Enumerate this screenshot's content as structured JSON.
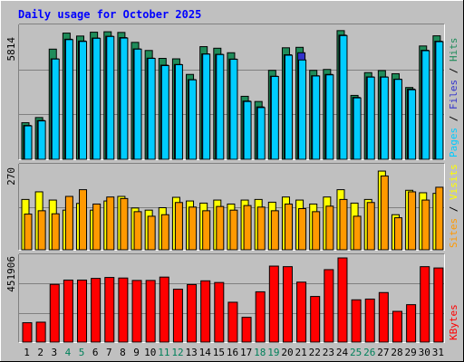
{
  "chart_data": [
    {
      "type": "bar",
      "title": "Daily usage for October 2025",
      "ylabel_max": "5814",
      "legend": [
        "Pages",
        "Files",
        "Hits"
      ],
      "categories": [
        "1",
        "2",
        "3",
        "4",
        "5",
        "6",
        "7",
        "8",
        "9",
        "10",
        "11",
        "12",
        "13",
        "14",
        "15",
        "16",
        "17",
        "18",
        "19",
        "20",
        "21",
        "22",
        "23",
        "24",
        "25",
        "26",
        "27",
        "28",
        "29",
        "30",
        "31"
      ],
      "weekend_days": [
        "4",
        "5",
        "11",
        "12",
        "18",
        "19",
        "25",
        "26"
      ],
      "ylim": [
        0,
        5814
      ],
      "series": [
        {
          "name": "Hits",
          "color": "#1F8C5A",
          "values": [
            1620,
            1850,
            4880,
            5590,
            5460,
            5630,
            5650,
            5620,
            5180,
            4820,
            4470,
            4450,
            3760,
            4990,
            4920,
            4720,
            2790,
            2560,
            3940,
            4940,
            4960,
            3940,
            3980,
            5700,
            2830,
            3840,
            3930,
            3790,
            3180,
            5020,
            5470
          ]
        },
        {
          "name": "Files",
          "color": "#3333CC",
          "values": [
            1500,
            1720,
            4450,
            5320,
            5240,
            5370,
            5450,
            5390,
            4890,
            4480,
            4170,
            4200,
            3530,
            4670,
            4650,
            4440,
            2580,
            2320,
            3680,
            4630,
            4720,
            3700,
            3760,
            5500,
            2740,
            3650,
            3650,
            3550,
            3110,
            4830,
            5230
          ]
        },
        {
          "name": "Pages",
          "color": "#00CCFF",
          "values": [
            1480,
            1700,
            4440,
            5300,
            5220,
            5360,
            5440,
            5370,
            4880,
            4470,
            4150,
            4190,
            3520,
            4660,
            4640,
            4430,
            2560,
            2290,
            3670,
            4610,
            4400,
            3690,
            3740,
            5480,
            2720,
            3640,
            3640,
            3540,
            3080,
            4810,
            5210
          ]
        }
      ]
    },
    {
      "type": "bar",
      "ylabel_max": "270",
      "legend": [
        "Sites",
        "Visits"
      ],
      "categories": [
        "1",
        "2",
        "3",
        "4",
        "5",
        "6",
        "7",
        "8",
        "9",
        "10",
        "11",
        "12",
        "13",
        "14",
        "15",
        "16",
        "17",
        "18",
        "19",
        "20",
        "21",
        "22",
        "23",
        "24",
        "25",
        "26",
        "27",
        "28",
        "29",
        "30",
        "31"
      ],
      "ylim": [
        0,
        270
      ],
      "series": [
        {
          "name": "Visits",
          "color": "#FFFF00",
          "values": [
            165,
            190,
            163,
            130,
            152,
            130,
            160,
            175,
            137,
            130,
            138,
            172,
            160,
            153,
            163,
            150,
            163,
            165,
            156,
            173,
            163,
            150,
            173,
            197,
            153,
            165,
            258,
            115,
            195,
            187,
            185
          ]
        },
        {
          "name": "Sites",
          "color": "#FF9900",
          "values": [
            117,
            128,
            118,
            175,
            197,
            150,
            173,
            168,
            125,
            110,
            115,
            155,
            140,
            128,
            142,
            130,
            145,
            140,
            128,
            150,
            135,
            125,
            143,
            165,
            110,
            155,
            242,
            105,
            190,
            163,
            205
          ]
        }
      ]
    },
    {
      "type": "bar",
      "ylabel_max": "451906",
      "legend": [
        "KBytes"
      ],
      "categories": [
        "1",
        "2",
        "3",
        "4",
        "5",
        "6",
        "7",
        "8",
        "9",
        "10",
        "11",
        "12",
        "13",
        "14",
        "15",
        "16",
        "17",
        "18",
        "19",
        "20",
        "21",
        "22",
        "23",
        "24",
        "25",
        "26",
        "27",
        "28",
        "29",
        "30",
        "31"
      ],
      "ylim": [
        0,
        451906
      ],
      "series": [
        {
          "name": "KBytes",
          "color": "#FF0000",
          "values": [
            104000,
            107000,
            310000,
            333000,
            333000,
            342000,
            347000,
            344000,
            331000,
            331000,
            349000,
            284000,
            309000,
            329000,
            320000,
            214000,
            133000,
            270000,
            408000,
            405000,
            322000,
            245000,
            389000,
            451906,
            227000,
            231000,
            266000,
            165000,
            201000,
            405000,
            398000
          ]
        }
      ]
    }
  ]
}
